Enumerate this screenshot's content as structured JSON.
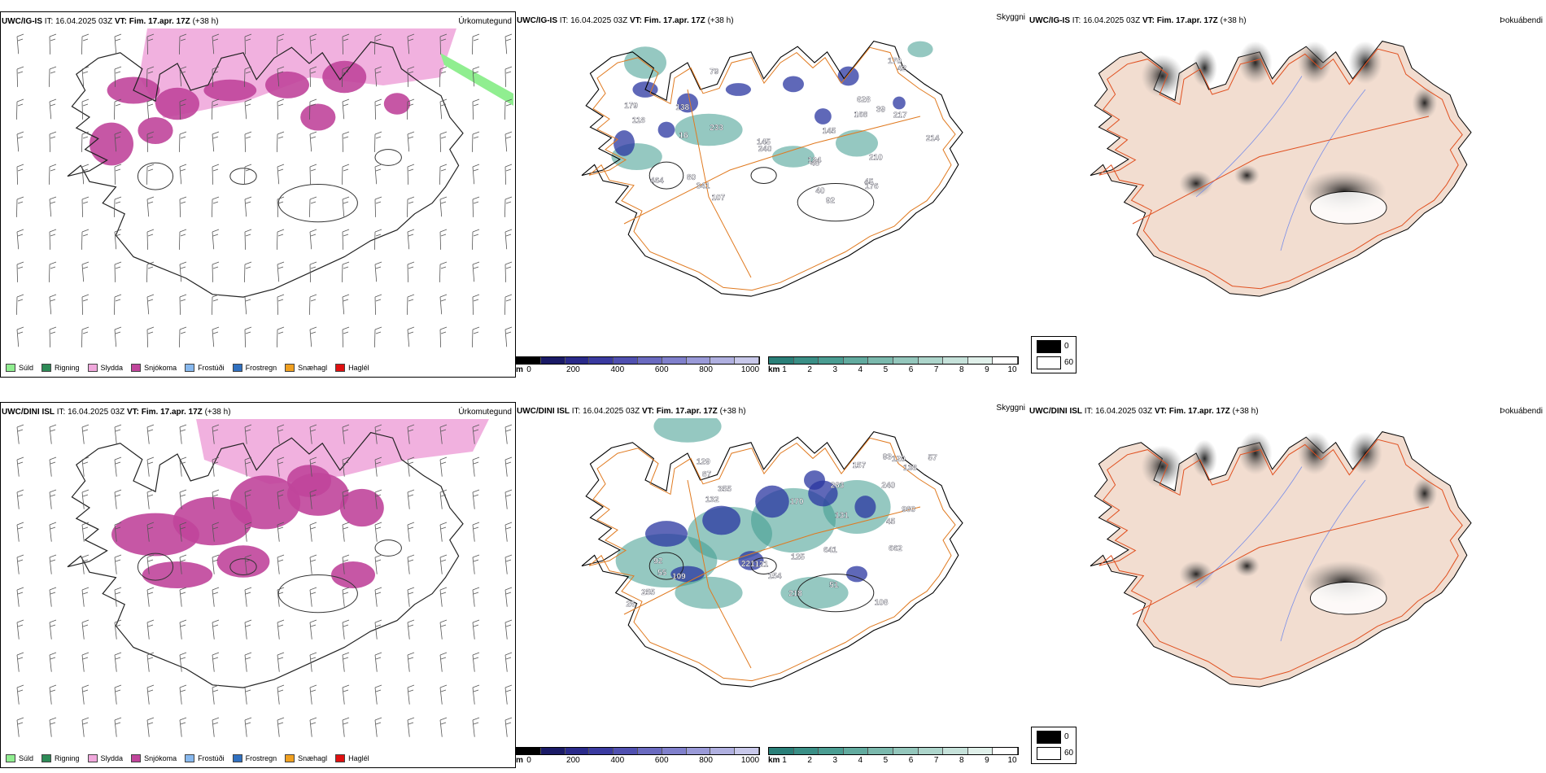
{
  "rows": [
    {
      "model": "UWC/IG-IS",
      "it": "IT: 16.04.2025 03Z",
      "vt": "VT: Fim. 17.apr. 17Z",
      "lead": "(+38 h)",
      "ceiling_labels": [
        "92",
        "79",
        "80",
        "138",
        "39",
        "40",
        "214",
        "233",
        "240",
        "341",
        "464",
        "179",
        "145",
        "124",
        "168",
        "170",
        "118",
        "42",
        "210",
        "217",
        "45",
        "48",
        "107",
        "176",
        "145",
        "628",
        "16"
      ]
    },
    {
      "model": "UWC/DINI ISL",
      "it": "IT: 16.04.2025 03Z",
      "vt": "VT: Fim. 17.apr. 17Z",
      "lead": "(+38 h)",
      "ceiling_labels": [
        "120",
        "87",
        "57",
        "662",
        "240",
        "218",
        "93",
        "108",
        "51",
        "92",
        "125",
        "263",
        "255",
        "221",
        "980",
        "26",
        "131",
        "641",
        "355",
        "157",
        "132",
        "129",
        "138",
        "55",
        "109",
        "154",
        "170",
        "121",
        "45"
      ]
    }
  ],
  "panel_titles": {
    "precip_type": "Úrkomutegund",
    "ceiling": "Skyggni",
    "fog": "Þokuábendi"
  },
  "precip_legend": [
    {
      "label": "Súld",
      "color": "#90ee90"
    },
    {
      "label": "Rigning",
      "color": "#2e8b57"
    },
    {
      "label": "Slydda",
      "color": "#f0a8dc"
    },
    {
      "label": "Snjókoma",
      "color": "#c0459b"
    },
    {
      "label": "Frostúði",
      "color": "#87b8ee"
    },
    {
      "label": "Frostregn",
      "color": "#3070c0"
    },
    {
      "label": "Snæhagl",
      "color": "#f0a020"
    },
    {
      "label": "Haglél",
      "color": "#e01010"
    }
  ],
  "ceiling_bar": {
    "unit": "m",
    "ticks": [
      "0",
      "200",
      "400",
      "600",
      "800",
      "1000"
    ]
  },
  "vis_bar": {
    "unit": "km",
    "ticks": [
      "1",
      "2",
      "3",
      "4",
      "5",
      "6",
      "7",
      "8",
      "9",
      "10"
    ]
  },
  "fog_legend": {
    "high": "0",
    "low": "60"
  }
}
